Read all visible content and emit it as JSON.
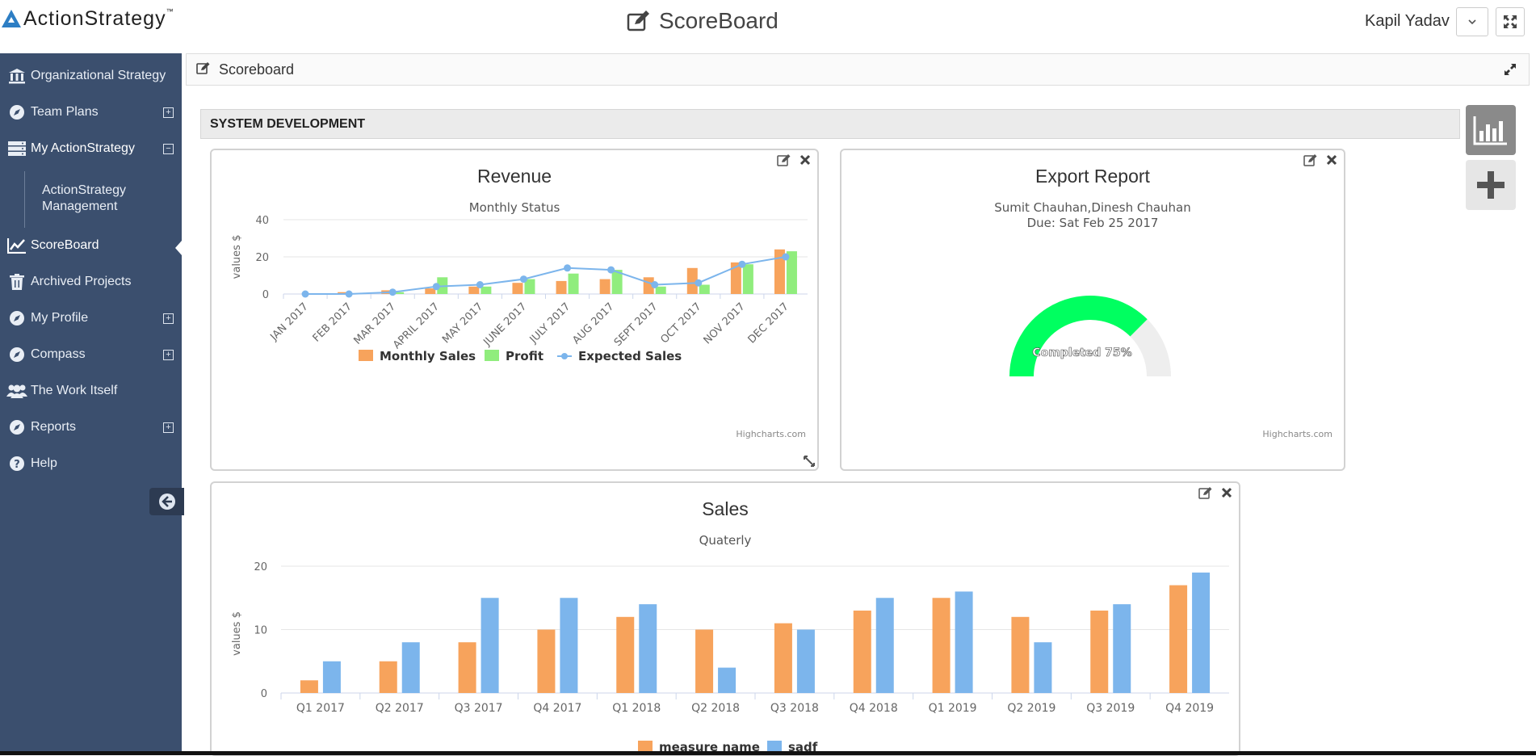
{
  "header": {
    "logo_text": "ActionStrategy",
    "logo_tm": "™",
    "app_title": "ScoreBoard",
    "user_name": "Kapil  Yadav"
  },
  "sidebar": {
    "items": [
      {
        "label": "Organizational Strategy",
        "icon": "bank-icon"
      },
      {
        "label": "Team Plans",
        "icon": "compass-icon",
        "expand": "⊞"
      },
      {
        "label": "My ActionStrategy",
        "icon": "server-icon",
        "expand": "⊟"
      },
      {
        "label": "ScoreBoard",
        "icon": "line-chart-icon"
      },
      {
        "label": "Archived Projects",
        "icon": "trash-icon"
      },
      {
        "label": "My Profile",
        "icon": "compass-icon",
        "expand": "⊞"
      },
      {
        "label": "Compass",
        "icon": "compass-icon",
        "expand": "⊞"
      },
      {
        "label": "The Work Itself",
        "icon": "users-icon"
      },
      {
        "label": "Reports",
        "icon": "compass-icon",
        "expand": "⊞"
      },
      {
        "label": "Help",
        "icon": "question-icon"
      }
    ],
    "sub_item": "ActionStrategy Management"
  },
  "content": {
    "bar_title": "Scoreboard",
    "section_title": "SYSTEM DEVELOPMENT"
  },
  "panels": {
    "revenue": {
      "title": "Revenue",
      "subtitle": "Monthly Status",
      "credits": "Highcharts.com"
    },
    "export": {
      "title": "Export Report",
      "subtitle_line1": "Sumit Chauhan,Dinesh Chauhan",
      "subtitle_line2": "Due: Sat Feb 25 2017",
      "credits": "Highcharts.com"
    },
    "sales": {
      "title": "Sales",
      "subtitle": "Quaterly"
    }
  },
  "colors": {
    "sidebar": "#3b4f6e",
    "orange": "#f7a35c",
    "green": "#90ed7d",
    "blue": "#7cb5ec",
    "gauge_green": "#00ff60",
    "gauge_bg": "#eeeeee"
  },
  "chart_data": [
    {
      "type": "bar",
      "title": "Revenue",
      "subtitle": "Monthly Status",
      "ylabel": "values $",
      "ylim": [
        0,
        40
      ],
      "yticks": [
        0,
        20,
        40
      ],
      "categories": [
        "JAN 2017",
        "FEB 2017",
        "MAR 2017",
        "APRIL 2017",
        "MAY 2017",
        "JUNE 2017",
        "JULY 2017",
        "AUG 2017",
        "SEPT 2017",
        "OCT 2017",
        "NOV 2017",
        "DEC 2017"
      ],
      "series": [
        {
          "name": "Monthly Sales",
          "type": "bar",
          "values": [
            0,
            1,
            2,
            3,
            4,
            6,
            7,
            8,
            9,
            14,
            17,
            24
          ]
        },
        {
          "name": "Profit",
          "type": "bar",
          "values": [
            0,
            0,
            1,
            9,
            4,
            8,
            11,
            13,
            4,
            5,
            16,
            23
          ]
        },
        {
          "name": "Expected Sales",
          "type": "line",
          "values": [
            0,
            0,
            1,
            4,
            5,
            8,
            14,
            13,
            5,
            6,
            16,
            20
          ]
        }
      ],
      "legend": "bottom-center",
      "grid": true
    },
    {
      "type": "gauge",
      "title": "Export Report",
      "value": 75,
      "label": "Completed 75%"
    },
    {
      "type": "bar",
      "title": "Sales",
      "subtitle": "Quaterly",
      "ylabel": "values $",
      "ylim": [
        0,
        20
      ],
      "yticks": [
        0,
        10,
        20
      ],
      "categories": [
        "Q1 2017",
        "Q2 2017",
        "Q3 2017",
        "Q4 2017",
        "Q1 2018",
        "Q2 2018",
        "Q3 2018",
        "Q4 2018",
        "Q1 2019",
        "Q2 2019",
        "Q3 2019",
        "Q4 2019"
      ],
      "series": [
        {
          "name": "measure name",
          "values": [
            2,
            5,
            8,
            10,
            12,
            10,
            11,
            13,
            15,
            12,
            13,
            17
          ]
        },
        {
          "name": "sadf",
          "values": [
            5,
            8,
            15,
            15,
            14,
            4,
            10,
            15,
            16,
            8,
            14,
            19
          ]
        }
      ],
      "legend": "bottom-center",
      "grid": true
    }
  ]
}
